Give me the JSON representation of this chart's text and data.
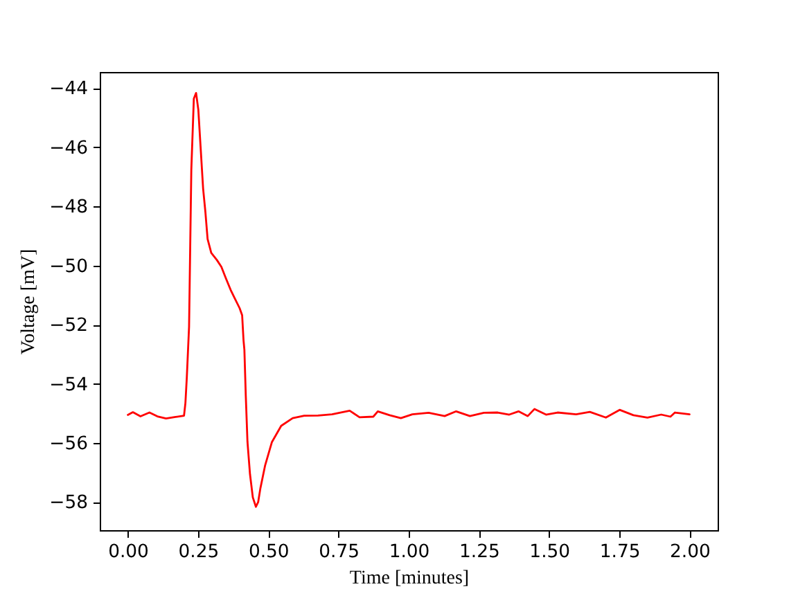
{
  "chart_data": {
    "type": "line",
    "xlabel": "Time [minutes]",
    "ylabel": "Voltage [mV]",
    "xlim": [
      -0.1,
      2.1
    ],
    "ylim": [
      -58.95,
      -43.45
    ],
    "xticks": [
      {
        "value": 0,
        "label": "0.00"
      },
      {
        "value": 0.25,
        "label": "0.25"
      },
      {
        "value": 0.5,
        "label": "0.50"
      },
      {
        "value": 0.75,
        "label": "0.75"
      },
      {
        "value": 1,
        "label": "1.00"
      },
      {
        "value": 1.25,
        "label": "1.25"
      },
      {
        "value": 1.5,
        "label": "1.50"
      },
      {
        "value": 1.75,
        "label": "1.75"
      },
      {
        "value": 2,
        "label": "2.00"
      }
    ],
    "yticks": [
      -58,
      -56,
      -54,
      -52,
      -50,
      -48,
      -46,
      -44
    ],
    "grid": false,
    "legend": false,
    "marker": "none",
    "line_style": "solid",
    "series": [
      {
        "color": "#ff0000",
        "x": [
          0.0,
          0.018,
          0.045,
          0.077,
          0.105,
          0.136,
          0.17,
          0.2,
          0.205,
          0.21,
          0.218,
          0.226,
          0.235,
          0.243,
          0.251,
          0.259,
          0.268,
          0.276,
          0.284,
          0.297,
          0.317,
          0.333,
          0.349,
          0.366,
          0.382,
          0.398,
          0.407,
          0.412,
          0.415,
          0.42,
          0.426,
          0.435,
          0.445,
          0.456,
          0.464,
          0.472,
          0.489,
          0.513,
          0.546,
          0.587,
          0.628,
          0.677,
          0.727,
          0.79,
          0.825,
          0.874,
          0.89,
          0.932,
          0.972,
          1.013,
          1.071,
          1.128,
          1.169,
          1.218,
          1.268,
          1.317,
          1.358,
          1.391,
          1.424,
          1.448,
          1.489,
          1.53,
          1.596,
          1.645,
          1.702,
          1.751,
          1.8,
          1.85,
          1.899,
          1.932,
          1.948,
          2.0
        ],
        "values": [
          -55.05,
          -54.96,
          -55.1,
          -54.97,
          -55.1,
          -55.17,
          -55.12,
          -55.08,
          -54.65,
          -53.78,
          -52.07,
          -46.76,
          -44.35,
          -44.16,
          -44.73,
          -45.98,
          -47.39,
          -48.17,
          -49.1,
          -49.57,
          -49.81,
          -50.04,
          -50.43,
          -50.82,
          -51.13,
          -51.44,
          -51.68,
          -52.54,
          -52.85,
          -54.41,
          -55.97,
          -57.06,
          -57.84,
          -58.16,
          -58.0,
          -57.53,
          -56.75,
          -55.97,
          -55.42,
          -55.16,
          -55.08,
          -55.07,
          -55.03,
          -54.91,
          -55.13,
          -55.11,
          -54.93,
          -55.06,
          -55.16,
          -55.03,
          -54.98,
          -55.09,
          -54.93,
          -55.09,
          -54.98,
          -54.97,
          -55.04,
          -54.93,
          -55.09,
          -54.85,
          -55.04,
          -54.97,
          -55.03,
          -54.95,
          -55.14,
          -54.88,
          -55.06,
          -55.14,
          -55.04,
          -55.11,
          -54.97,
          -55.03
        ]
      }
    ]
  }
}
